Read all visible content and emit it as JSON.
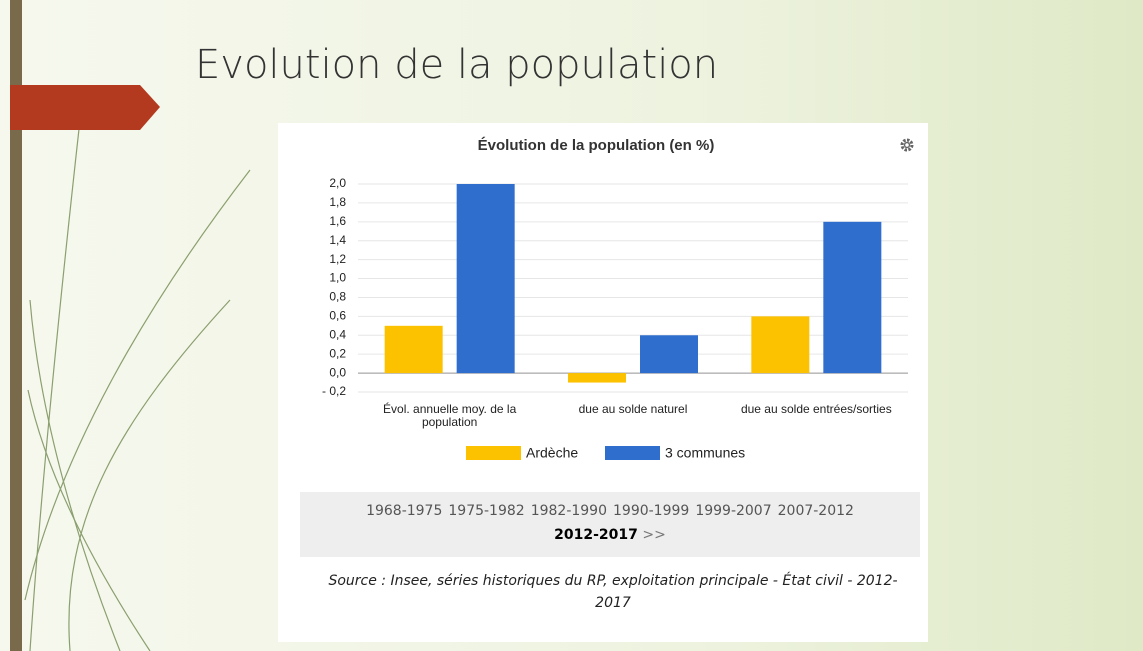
{
  "slide_title": "Evolution de la population",
  "chart_data": {
    "type": "bar",
    "title": "Évolution de la population (en %)",
    "categories": [
      "Évol. annuelle moy. de la population",
      "due au solde naturel",
      "due au solde entrées/sorties"
    ],
    "series": [
      {
        "name": "Ardèche",
        "color": "#fcc200",
        "values": [
          0.5,
          -0.1,
          0.6
        ]
      },
      {
        "name": "3 communes",
        "color": "#2f6ecd",
        "values": [
          2.0,
          0.4,
          1.6
        ]
      }
    ],
    "ylim": [
      -0.2,
      2.0
    ],
    "yticks": [
      {
        "value": -0.2,
        "label": "- 0,2"
      },
      {
        "value": 0,
        "label": "0,0"
      },
      {
        "value": 0.2,
        "label": "0,2"
      },
      {
        "value": 0.4,
        "label": "0,4"
      },
      {
        "value": 0.6,
        "label": "0,6"
      },
      {
        "value": 0.8,
        "label": "0,8"
      },
      {
        "value": 1.0,
        "label": "1,0"
      },
      {
        "value": 1.2,
        "label": "1,2"
      },
      {
        "value": 1.4,
        "label": "1,4"
      },
      {
        "value": 1.6,
        "label": "1,6"
      },
      {
        "value": 1.8,
        "label": "1,8"
      },
      {
        "value": 2.0,
        "label": "2,0"
      }
    ],
    "grid": true
  },
  "periods": [
    "1968-1975",
    "1975-1982",
    "1982-1990",
    "1990-1999",
    "1999-2007",
    "2007-2012"
  ],
  "current_period": "2012-2017",
  "next": ">>",
  "source": "Source : Insee, séries historiques du RP, exploitation principale - État civil - 2012-2017"
}
